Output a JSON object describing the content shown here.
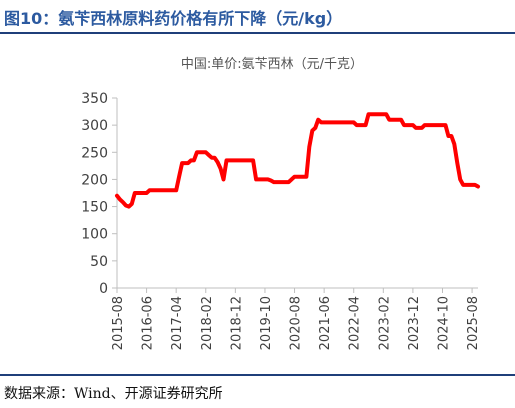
{
  "figure_title": "图10：氨苄西林原料药价格有所下降（元/kg）",
  "source_note": "数据来源：Wind、开源证券研究所",
  "colors": {
    "line": "#ff0000",
    "title": "#2c5aa0",
    "rule": "#1f3f7a"
  },
  "chart_data": {
    "type": "line",
    "title": "中国:单价:氨苄西林（元/千克）",
    "xlabel": "",
    "ylabel": "",
    "ylim": [
      0,
      350
    ],
    "yticks": [
      0,
      50,
      100,
      150,
      200,
      250,
      300,
      350
    ],
    "x_range": [
      "2015-08",
      "2025-10"
    ],
    "xticks": [
      "2015-08",
      "2016-06",
      "2017-04",
      "2018-02",
      "2018-12",
      "2019-10",
      "2020-08",
      "2021-06",
      "2022-04",
      "2023-02",
      "2023-12",
      "2024-10",
      "2025-08"
    ],
    "grid": false,
    "legend": "none",
    "series": [
      {
        "name": "",
        "points": [
          [
            "2015-08",
            170
          ],
          [
            "2015-09",
            163
          ],
          [
            "2015-10",
            158
          ],
          [
            "2015-11",
            152
          ],
          [
            "2015-12",
            150
          ],
          [
            "2016-01",
            155
          ],
          [
            "2016-02",
            175
          ],
          [
            "2016-03",
            175
          ],
          [
            "2016-04",
            175
          ],
          [
            "2016-05",
            175
          ],
          [
            "2016-06",
            175
          ],
          [
            "2016-07",
            180
          ],
          [
            "2016-08",
            180
          ],
          [
            "2016-09",
            180
          ],
          [
            "2016-10",
            180
          ],
          [
            "2016-11",
            180
          ],
          [
            "2016-12",
            180
          ],
          [
            "2017-01",
            180
          ],
          [
            "2017-02",
            180
          ],
          [
            "2017-03",
            180
          ],
          [
            "2017-04",
            180
          ],
          [
            "2017-05",
            205
          ],
          [
            "2017-06",
            230
          ],
          [
            "2017-07",
            230
          ],
          [
            "2017-08",
            230
          ],
          [
            "2017-09",
            235
          ],
          [
            "2017-10",
            235
          ],
          [
            "2017-11",
            250
          ],
          [
            "2017-12",
            250
          ],
          [
            "2018-01",
            250
          ],
          [
            "2018-02",
            250
          ],
          [
            "2018-03",
            245
          ],
          [
            "2018-04",
            240
          ],
          [
            "2018-05",
            240
          ],
          [
            "2018-06",
            232
          ],
          [
            "2018-07",
            220
          ],
          [
            "2018-08",
            200
          ],
          [
            "2018-09",
            235
          ],
          [
            "2018-10",
            235
          ],
          [
            "2018-11",
            235
          ],
          [
            "2018-12",
            235
          ],
          [
            "2019-01",
            235
          ],
          [
            "2019-02",
            235
          ],
          [
            "2019-03",
            235
          ],
          [
            "2019-04",
            235
          ],
          [
            "2019-05",
            235
          ],
          [
            "2019-06",
            235
          ],
          [
            "2019-07",
            200
          ],
          [
            "2019-08",
            200
          ],
          [
            "2019-09",
            200
          ],
          [
            "2019-10",
            200
          ],
          [
            "2019-11",
            200
          ],
          [
            "2019-12",
            198
          ],
          [
            "2020-01",
            195
          ],
          [
            "2020-02",
            195
          ],
          [
            "2020-03",
            195
          ],
          [
            "2020-04",
            195
          ],
          [
            "2020-05",
            195
          ],
          [
            "2020-06",
            195
          ],
          [
            "2020-07",
            200
          ],
          [
            "2020-08",
            205
          ],
          [
            "2020-09",
            205
          ],
          [
            "2020-10",
            205
          ],
          [
            "2020-11",
            205
          ],
          [
            "2020-12",
            205
          ],
          [
            "2021-01",
            260
          ],
          [
            "2021-02",
            290
          ],
          [
            "2021-03",
            295
          ],
          [
            "2021-04",
            310
          ],
          [
            "2021-05",
            305
          ],
          [
            "2021-06",
            305
          ],
          [
            "2021-07",
            305
          ],
          [
            "2021-08",
            305
          ],
          [
            "2021-09",
            305
          ],
          [
            "2021-10",
            305
          ],
          [
            "2021-11",
            305
          ],
          [
            "2021-12",
            305
          ],
          [
            "2022-01",
            305
          ],
          [
            "2022-02",
            305
          ],
          [
            "2022-03",
            305
          ],
          [
            "2022-04",
            305
          ],
          [
            "2022-05",
            300
          ],
          [
            "2022-06",
            300
          ],
          [
            "2022-07",
            300
          ],
          [
            "2022-08",
            300
          ],
          [
            "2022-09",
            320
          ],
          [
            "2022-10",
            320
          ],
          [
            "2022-11",
            320
          ],
          [
            "2022-12",
            320
          ],
          [
            "2023-01",
            320
          ],
          [
            "2023-02",
            320
          ],
          [
            "2023-03",
            320
          ],
          [
            "2023-04",
            310
          ],
          [
            "2023-05",
            310
          ],
          [
            "2023-06",
            310
          ],
          [
            "2023-07",
            310
          ],
          [
            "2023-08",
            310
          ],
          [
            "2023-09",
            300
          ],
          [
            "2023-10",
            300
          ],
          [
            "2023-11",
            300
          ],
          [
            "2023-12",
            300
          ],
          [
            "2024-01",
            295
          ],
          [
            "2024-02",
            295
          ],
          [
            "2024-03",
            295
          ],
          [
            "2024-04",
            300
          ],
          [
            "2024-05",
            300
          ],
          [
            "2024-06",
            300
          ],
          [
            "2024-07",
            300
          ],
          [
            "2024-08",
            300
          ],
          [
            "2024-09",
            300
          ],
          [
            "2024-10",
            300
          ],
          [
            "2024-11",
            300
          ],
          [
            "2024-12",
            280
          ],
          [
            "2025-01",
            280
          ],
          [
            "2025-02",
            265
          ],
          [
            "2025-03",
            230
          ],
          [
            "2025-04",
            200
          ],
          [
            "2025-05",
            190
          ],
          [
            "2025-06",
            190
          ],
          [
            "2025-07",
            190
          ],
          [
            "2025-08",
            190
          ],
          [
            "2025-09",
            190
          ],
          [
            "2025-10",
            187
          ]
        ]
      }
    ]
  }
}
